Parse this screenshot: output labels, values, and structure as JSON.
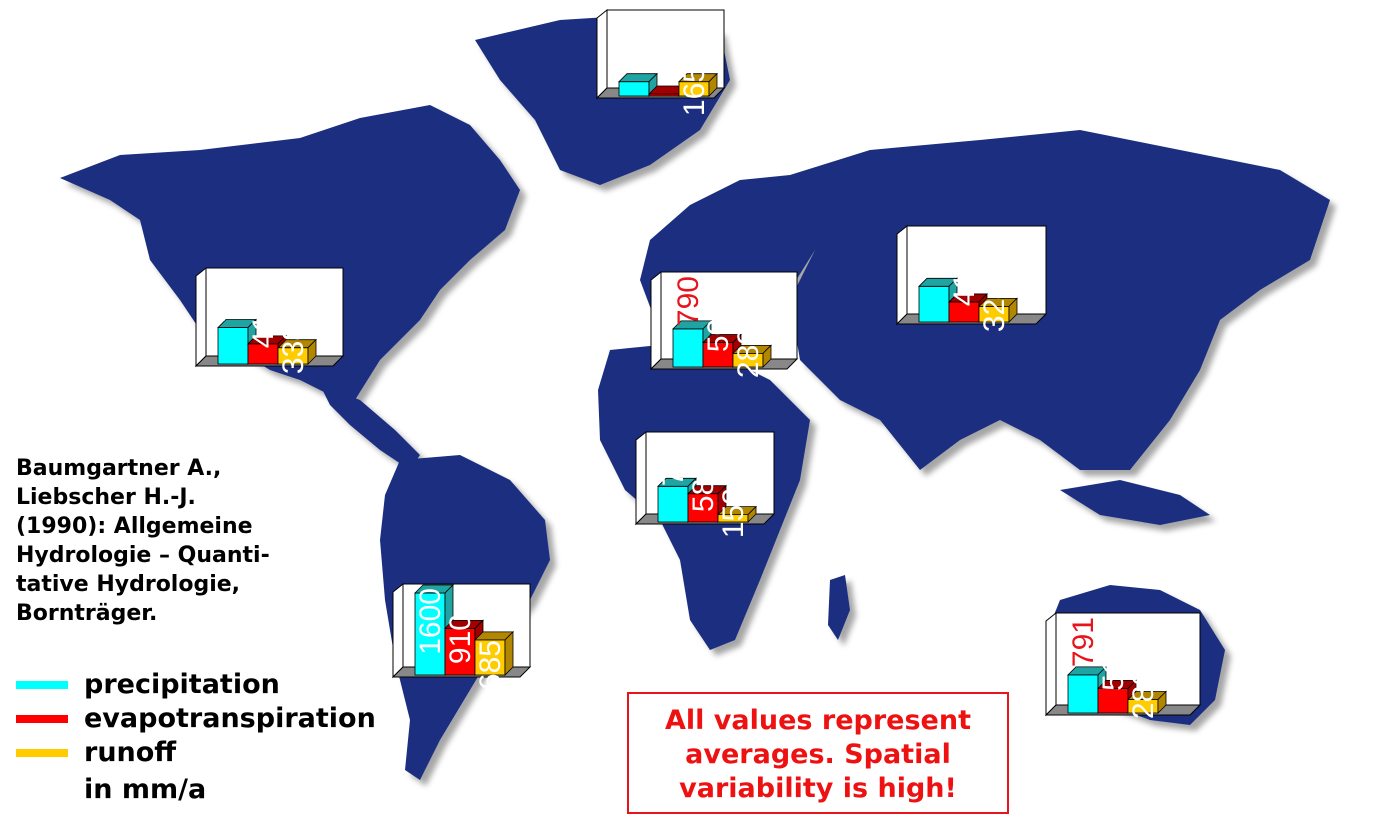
{
  "citation": "Baumgartner A.,\nLiebscher H.-J.\n(1990): Allgemeine\nHydrologie – Quanti-\ntative Hydrologie,\nBornträger.",
  "legend": [
    {
      "label": "precipitation",
      "color": "#00ffff"
    },
    {
      "label": "evapotranspiration",
      "color": "#ff0000"
    },
    {
      "label": "runoff",
      "color": "#ffcc00"
    }
  ],
  "unit": "in mm/a",
  "note": "All values represent\naverages. Spatial\nvariability is high!",
  "colors": {
    "ocean": "#ffffff",
    "land": "#1a2f80",
    "highlight_label": "#e8141c"
  },
  "chart_data": [
    {
      "type": "bar",
      "region": "Greenland",
      "categories": [
        "precipitation",
        "evapotranspiration",
        "runoff"
      ],
      "values": [
        165,
        0,
        165
      ],
      "labels": [
        "165",
        "0",
        "165"
      ]
    },
    {
      "type": "bar",
      "region": "North America",
      "categories": [
        "precipitation",
        "evapotranspiration",
        "runoff"
      ],
      "values": [
        756,
        418,
        338
      ],
      "labels": [
        "756",
        "418",
        "338"
      ]
    },
    {
      "type": "bar",
      "region": "Europe",
      "categories": [
        "precipitation",
        "evapotranspiration",
        "runoff"
      ],
      "values": [
        790,
        507,
        283
      ],
      "labels": [
        "790",
        "507",
        "283"
      ],
      "highlight": [
        0
      ]
    },
    {
      "type": "bar",
      "region": "Asia",
      "categories": [
        "precipitation",
        "evapotranspiration",
        "runoff"
      ],
      "values": [
        740,
        416,
        324
      ],
      "labels": [
        "740",
        "416",
        "324"
      ]
    },
    {
      "type": "bar",
      "region": "Africa",
      "categories": [
        "precipitation",
        "evapotranspiration",
        "runoff"
      ],
      "values": [
        740,
        587,
        153
      ],
      "labels": [
        "740",
        "587",
        "153"
      ]
    },
    {
      "type": "bar",
      "region": "South America",
      "categories": [
        "precipitation",
        "evapotranspiration",
        "runoff"
      ],
      "values": [
        1600,
        910,
        685
      ],
      "labels": [
        "1600",
        "910",
        "685"
      ]
    },
    {
      "type": "bar",
      "region": "Australia",
      "categories": [
        "precipitation",
        "evapotranspiration",
        "runoff"
      ],
      "values": [
        791,
        511,
        280
      ],
      "labels": [
        "791",
        "511",
        "280"
      ],
      "highlight": [
        0
      ]
    }
  ]
}
